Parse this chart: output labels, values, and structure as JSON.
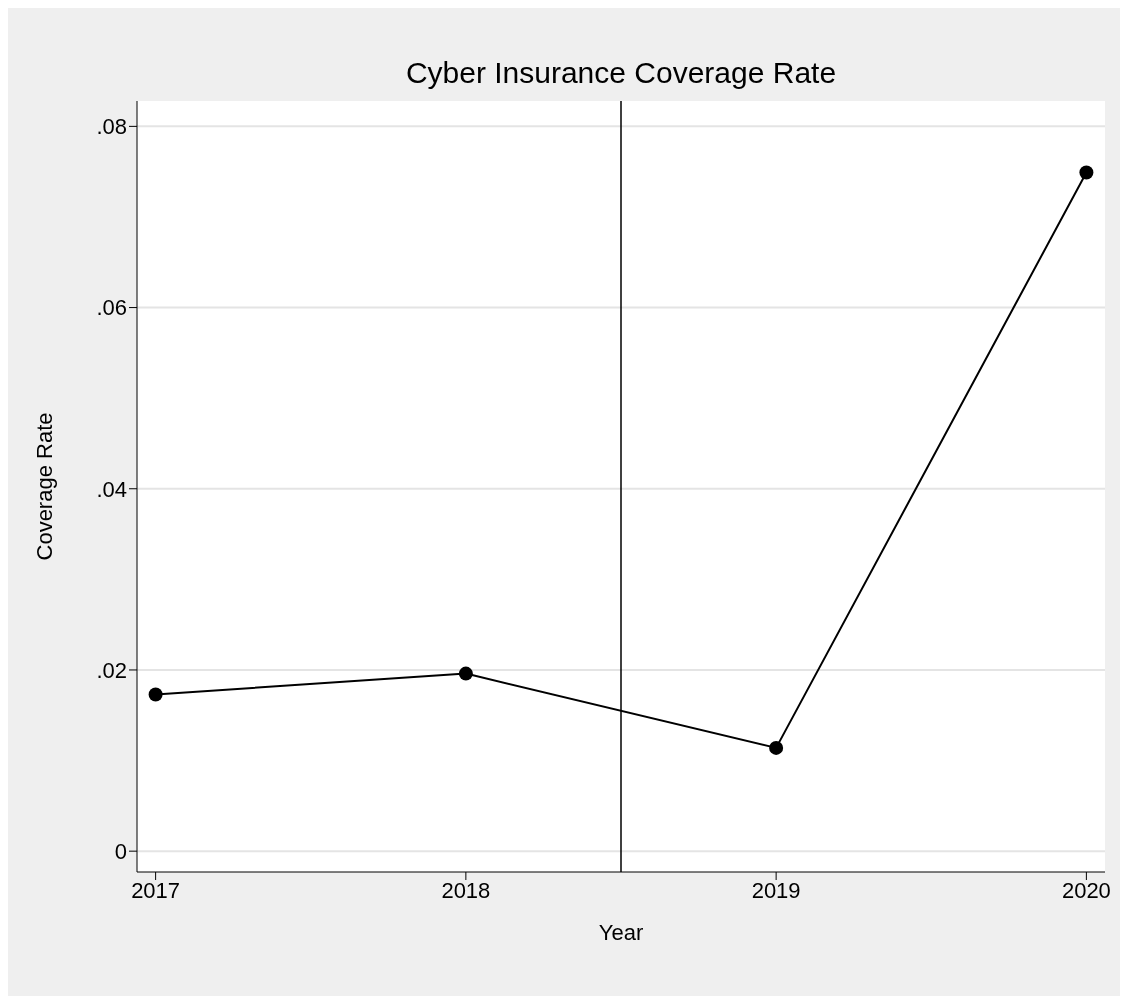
{
  "chart_data": {
    "type": "line",
    "title": "Cyber Insurance Coverage Rate",
    "xlabel": "Year",
    "ylabel": "Coverage Rate",
    "x": [
      2017,
      2018,
      2019,
      2020
    ],
    "series": [
      {
        "color": "#000000",
        "values": [
          0.0173,
          0.0196,
          0.0114,
          0.0749
        ]
      }
    ],
    "xlim": [
      2016.94,
      2020.06
    ],
    "xticks": [
      2017,
      2018,
      2019,
      2020
    ],
    "ylim": [
      -0.0023,
      0.0828
    ],
    "yticks": [
      {
        "value": 0,
        "label": "0"
      },
      {
        "value": 0.02,
        "label": ".02"
      },
      {
        "value": 0.04,
        "label": ".04"
      },
      {
        "value": 0.06,
        "label": ".06"
      },
      {
        "value": 0.08,
        "label": ".08"
      }
    ],
    "ref_lines": [
      {
        "axis": "x",
        "value": 2018.5,
        "color": "#000000"
      }
    ],
    "grid": "y",
    "marker": "circle",
    "line_style": "solid",
    "legend": false
  }
}
